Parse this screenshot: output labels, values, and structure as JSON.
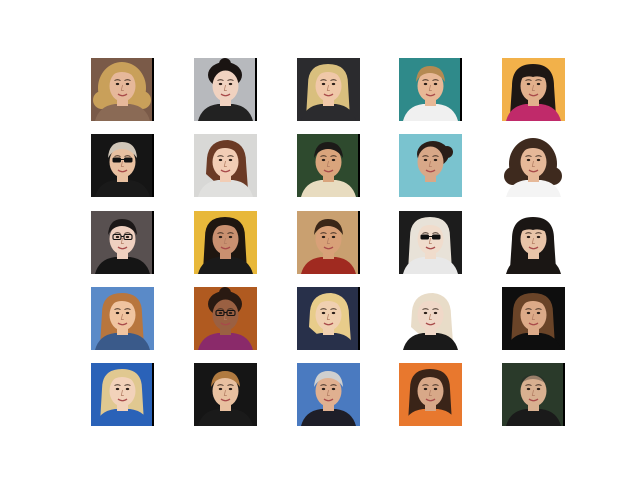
{
  "figure": {
    "background": "#ffffff",
    "rows": 5,
    "columns": 5
  },
  "tiles": [
    {
      "bg": "#7a5a48",
      "skin": "#e6b89a",
      "hair": "#c9a05a",
      "hair_style": "curly-long",
      "eyewear": "none",
      "clothing": "#8a6a55",
      "edge": true
    },
    {
      "bg": "#b7b9bd",
      "skin": "#f0d2c0",
      "hair": "#1a1412",
      "hair_style": "updo",
      "eyewear": "none",
      "clothing": "#222222",
      "edge": true
    },
    {
      "bg": "#2b2b2e",
      "skin": "#f0c8a8",
      "hair": "#d9bf7e",
      "hair_style": "straight-long",
      "eyewear": "none",
      "clothing": "#2b2b2e",
      "edge": false
    },
    {
      "bg": "#2f8a8a",
      "skin": "#e8b896",
      "hair": "#b58a52",
      "hair_style": "short",
      "eyewear": "none",
      "clothing": "#f0f0f0",
      "edge": true
    },
    {
      "bg": "#f2b14a",
      "skin": "#e2b08c",
      "hair": "#1e1714",
      "hair_style": "bangs-long",
      "eyewear": "none",
      "clothing": "#c02a6a",
      "edge": false
    },
    {
      "bg": "#151515",
      "skin": "#e8c0a0",
      "hair": "#d0c6b8",
      "hair_style": "short",
      "eyewear": "sunglasses",
      "clothing": "#1a1a1a",
      "edge": true
    },
    {
      "bg": "#d8d8d6",
      "skin": "#f2cdb5",
      "hair": "#6b3a25",
      "hair_style": "side-long",
      "eyewear": "none",
      "clothing": "#e0e0de",
      "edge": false
    },
    {
      "bg": "#2e4a2e",
      "skin": "#d9a47c",
      "hair": "#1c1a18",
      "hair_style": "short",
      "eyewear": "none",
      "clothing": "#e8dcc0",
      "edge": true
    },
    {
      "bg": "#7ac3cf",
      "skin": "#d8a888",
      "hair": "#2a1e18",
      "hair_style": "pulled-back",
      "eyewear": "none",
      "clothing": "#7ac3cf",
      "edge": false
    },
    {
      "bg": "#ffffff",
      "skin": "#e6b898",
      "hair": "#3e2a1e",
      "hair_style": "curly-long",
      "eyewear": "none",
      "clothing": "#f4f4f4",
      "edge": false
    },
    {
      "bg": "#585050",
      "skin": "#efd0c0",
      "hair": "#1c1818",
      "hair_style": "short",
      "eyewear": "glasses",
      "clothing": "#151515",
      "edge": true
    },
    {
      "bg": "#e8b83a",
      "skin": "#c99070",
      "hair": "#1e1610",
      "hair_style": "straight-long",
      "eyewear": "none",
      "clothing": "#1a1a1a",
      "edge": false
    },
    {
      "bg": "#c9a070",
      "skin": "#d8a078",
      "hair": "#3a2618",
      "hair_style": "short",
      "eyewear": "none",
      "clothing": "#a02a20",
      "edge": true
    },
    {
      "bg": "#1c1c1c",
      "skin": "#f0dccc",
      "hair": "#e8e2d8",
      "hair_style": "straight-long",
      "eyewear": "sunglasses",
      "clothing": "#e8e8e8",
      "edge": false
    },
    {
      "bg": "#ffffff",
      "skin": "#e8c4a8",
      "hair": "#1a1614",
      "hair_style": "bangs-long",
      "eyewear": "none",
      "clothing": "#1a1614",
      "edge": false
    },
    {
      "bg": "#5a8ac8",
      "skin": "#f0c4a0",
      "hair": "#b8763e",
      "hair_style": "straight-long",
      "eyewear": "none",
      "clothing": "#3a5a8a",
      "edge": false
    },
    {
      "bg": "#b05a20",
      "skin": "#9a6042",
      "hair": "#2a1a12",
      "hair_style": "updo",
      "eyewear": "glasses",
      "clothing": "#8a2a6a",
      "edge": false
    },
    {
      "bg": "#28304a",
      "skin": "#f0d0b0",
      "hair": "#e8cc8a",
      "hair_style": "side-long",
      "eyewear": "none",
      "clothing": "#28304a",
      "edge": true
    },
    {
      "bg": "#ffffff",
      "skin": "#f0d8c8",
      "hair": "#e8dcc8",
      "hair_style": "side-long",
      "eyewear": "none",
      "clothing": "#1a1a1a",
      "edge": false
    },
    {
      "bg": "#0e0e0e",
      "skin": "#dcaa88",
      "hair": "#6a4428",
      "hair_style": "straight-long",
      "eyewear": "none",
      "clothing": "#0e0e0e",
      "edge": false
    },
    {
      "bg": "#2a62b8",
      "skin": "#f2d2ba",
      "hair": "#e0c890",
      "hair_style": "straight-long",
      "eyewear": "none",
      "clothing": "#2a62b8",
      "edge": true
    },
    {
      "bg": "#151515",
      "skin": "#e8c0a0",
      "hair": "#b07a40",
      "hair_style": "short",
      "eyewear": "none",
      "clothing": "#1a1a1a",
      "edge": false
    },
    {
      "bg": "#4a7ac0",
      "skin": "#e0b090",
      "hair": "#cfcfcf",
      "hair_style": "short",
      "eyewear": "none",
      "clothing": "#1e1e28",
      "edge": false
    },
    {
      "bg": "#e8782e",
      "skin": "#d8a888",
      "hair": "#3a2418",
      "hair_style": "straight-long",
      "eyewear": "none",
      "clothing": "#e8782e",
      "edge": false
    },
    {
      "bg": "#2a3a2a",
      "skin": "#d8b090",
      "hair": "#222222",
      "hair_style": "bald",
      "eyewear": "none",
      "clothing": "#1a1a1a",
      "edge": true
    }
  ]
}
